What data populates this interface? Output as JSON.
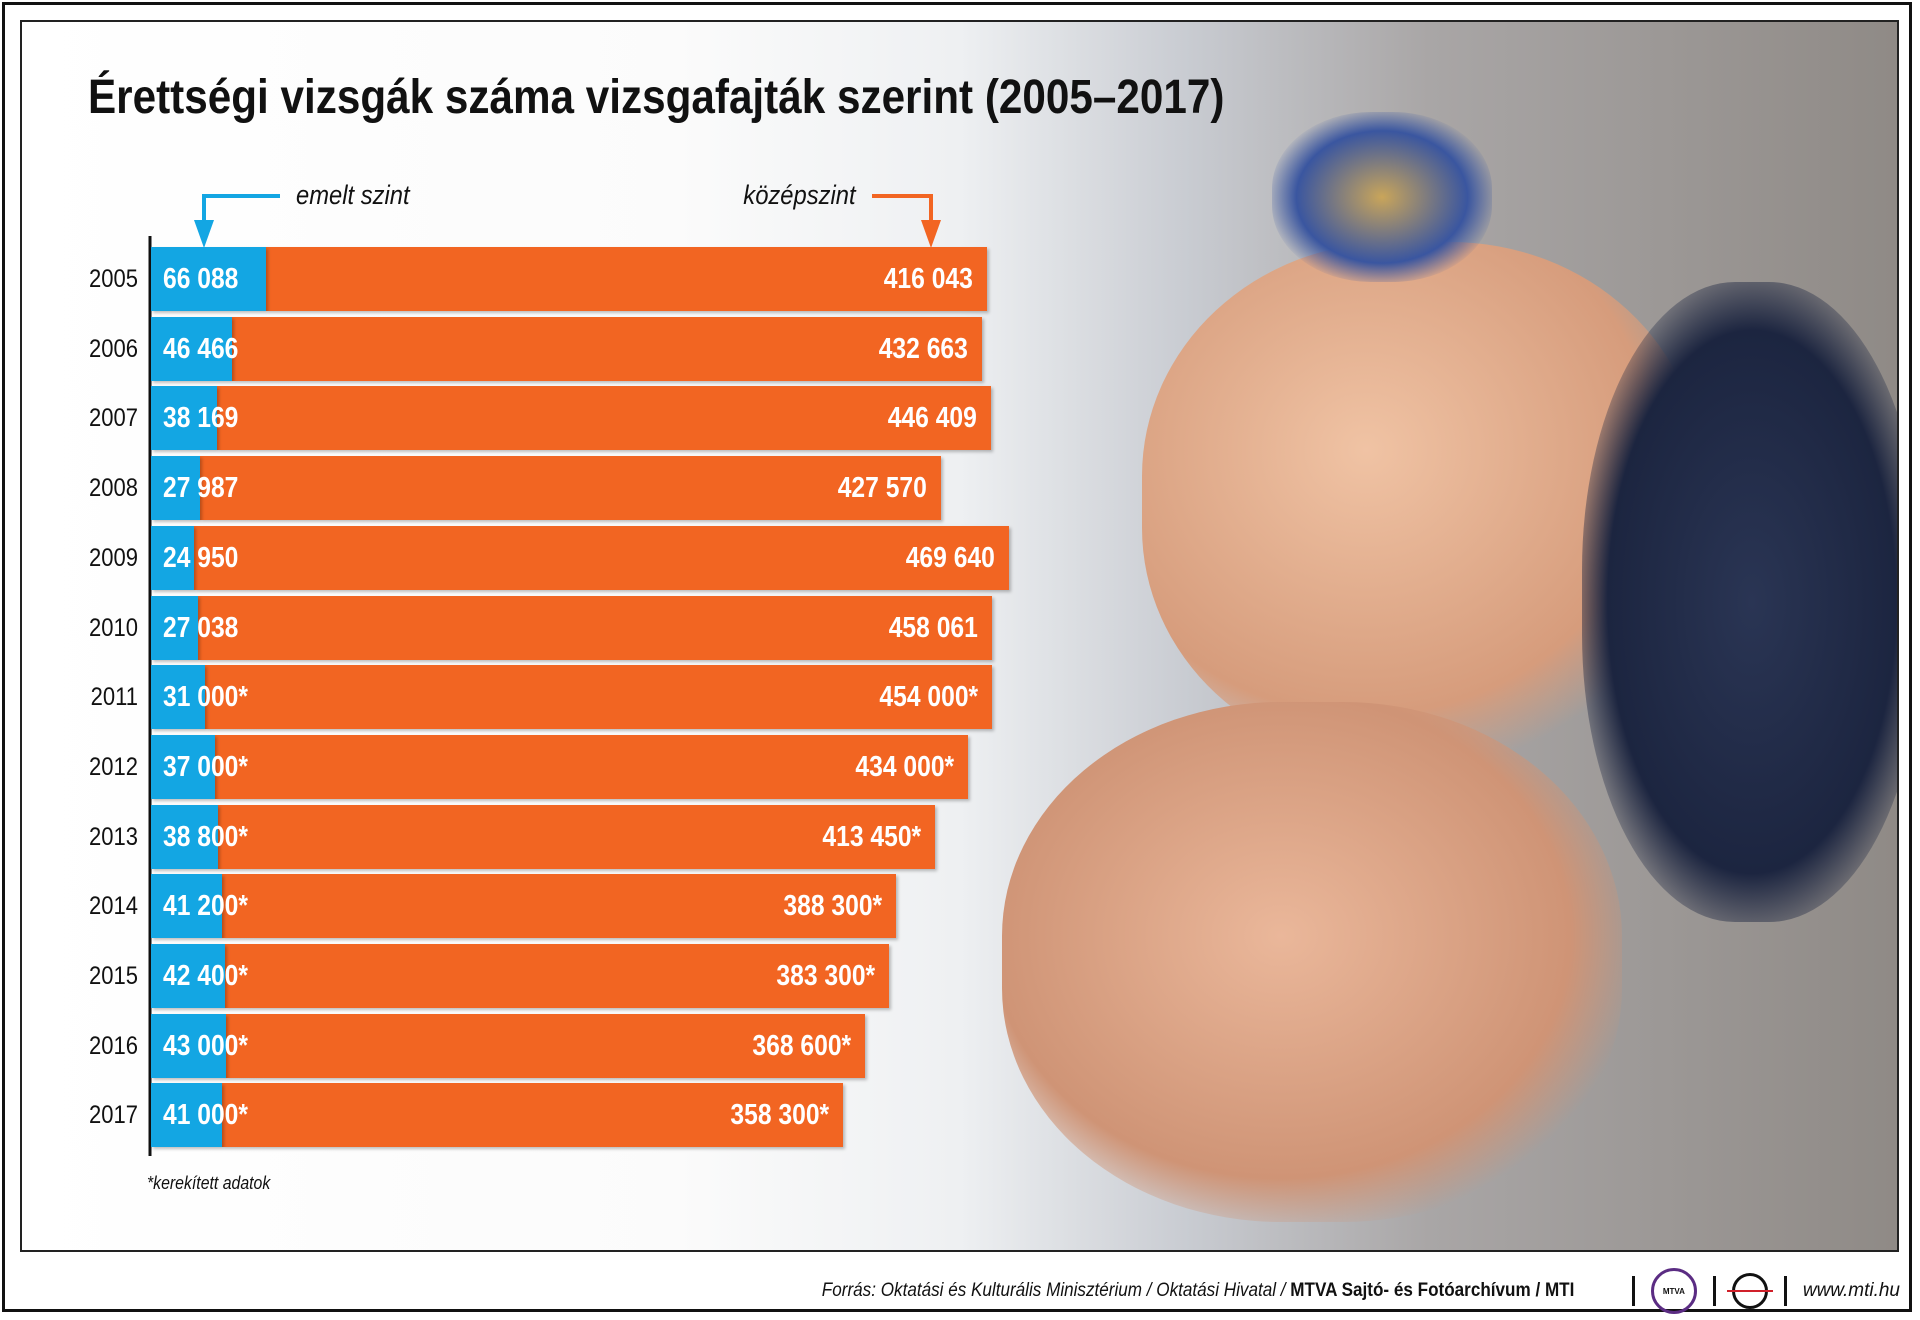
{
  "chart_data": {
    "type": "bar",
    "orientation": "horizontal-stacked",
    "title": "Érettségi vizsgák száma vizsgafajták szerint (2005–2017)",
    "categories": [
      "2005",
      "2006",
      "2007",
      "2008",
      "2009",
      "2010",
      "2011",
      "2012",
      "2013",
      "2014",
      "2015",
      "2016",
      "2017"
    ],
    "series": [
      {
        "name": "emelt szint",
        "color": "#13a6e3",
        "values": [
          66088,
          46466,
          38169,
          27987,
          24950,
          27038,
          31000,
          37000,
          38800,
          41200,
          42400,
          43000,
          41000
        ],
        "labels": [
          "66 088",
          "46 466",
          "38 169",
          "27 987",
          "24 950",
          "27 038",
          "31 000*",
          "37 000*",
          "38 800*",
          "41 200*",
          "42 400*",
          "43 000*",
          "41 000*"
        ]
      },
      {
        "name": "középszint",
        "color": "#f26522",
        "values": [
          416043,
          432663,
          446409,
          427570,
          469640,
          458061,
          454000,
          434000,
          413450,
          388300,
          383300,
          368600,
          358300
        ],
        "labels": [
          "416 043",
          "432 663",
          "446 409",
          "427 570",
          "469 640",
          "458 061",
          "454 000*",
          "434 000*",
          "413 450*",
          "388 300*",
          "383 300*",
          "368 600*",
          "358 300*"
        ]
      }
    ],
    "xlim": [
      0,
      500000
    ],
    "footnote": "*kerekített adatok"
  },
  "footer": {
    "source": "Forrás: Oktatási és Kulturális Minisztérium / Oktatási Hivatal / ",
    "archive": "MTVA Sajtó- és Fotóarchívum",
    "mti": " / MTI",
    "logo_text": "MTVA",
    "url": "www.mti.hu"
  }
}
